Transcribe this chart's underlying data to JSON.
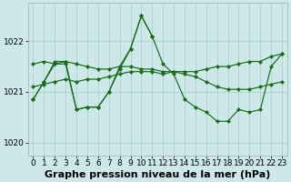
{
  "background_color": "#cce8e8",
  "grid_color": "#aacccc",
  "line_color": "#1a6b1a",
  "xlabel": "Graphe pression niveau de la mer (hPa)",
  "xlabel_fontsize": 8,
  "tick_fontsize": 6.5,
  "ylim": [
    1019.75,
    1022.75
  ],
  "yticks": [
    1020,
    1021,
    1022
  ],
  "xlim": [
    -0.5,
    23.5
  ],
  "xticks": [
    0,
    1,
    2,
    3,
    4,
    5,
    6,
    7,
    8,
    9,
    10,
    11,
    12,
    13,
    14,
    15,
    16,
    17,
    18,
    19,
    20,
    21,
    22,
    23
  ],
  "lines": [
    {
      "x": [
        0,
        1,
        2,
        3,
        4,
        5,
        6,
        7,
        8,
        9,
        10,
        11
      ],
      "y": [
        1020.85,
        1021.2,
        1021.6,
        1021.6,
        1020.65,
        1020.7,
        1020.7,
        1021.0,
        1021.5,
        1021.85,
        1022.5,
        1022.1
      ]
    },
    {
      "x": [
        0,
        1,
        2,
        3,
        4,
        5,
        6,
        7,
        8,
        9,
        10,
        11,
        12,
        13,
        14,
        15,
        16,
        17,
        18,
        19,
        20,
        21,
        22,
        23
      ],
      "y": [
        1021.55,
        1021.6,
        1021.55,
        1021.6,
        1021.55,
        1021.5,
        1021.45,
        1021.45,
        1021.5,
        1021.5,
        1021.45,
        1021.45,
        1021.4,
        1021.4,
        1021.35,
        1021.3,
        1021.2,
        1021.1,
        1021.05,
        1021.05,
        1021.05,
        1021.1,
        1021.15,
        1021.2
      ]
    },
    {
      "x": [
        0,
        1,
        2,
        3,
        4,
        5,
        6,
        7,
        8,
        9,
        10,
        11,
        12,
        13,
        14,
        15,
        16,
        17,
        18,
        19,
        20,
        21,
        22,
        23
      ],
      "y": [
        1021.1,
        1021.15,
        1021.2,
        1021.25,
        1021.2,
        1021.25,
        1021.25,
        1021.3,
        1021.35,
        1021.4,
        1021.4,
        1021.4,
        1021.35,
        1021.4,
        1021.4,
        1021.4,
        1021.45,
        1021.5,
        1021.5,
        1021.55,
        1021.6,
        1021.6,
        1021.7,
        1021.75
      ]
    },
    {
      "x": [
        0,
        1,
        2,
        3,
        4,
        5,
        6,
        7,
        8,
        9,
        10,
        11,
        12,
        13,
        14,
        15,
        16,
        17,
        18,
        19,
        20,
        21,
        22,
        23
      ],
      "y": [
        1020.85,
        1021.2,
        1021.55,
        1021.55,
        1020.65,
        1020.7,
        1020.7,
        1021.0,
        1021.45,
        1021.85,
        1022.5,
        1022.1,
        1021.55,
        1021.35,
        1020.85,
        1020.7,
        1020.6,
        1020.42,
        1020.42,
        1020.65,
        1020.6,
        1020.65,
        1021.5,
        1021.75
      ]
    }
  ]
}
